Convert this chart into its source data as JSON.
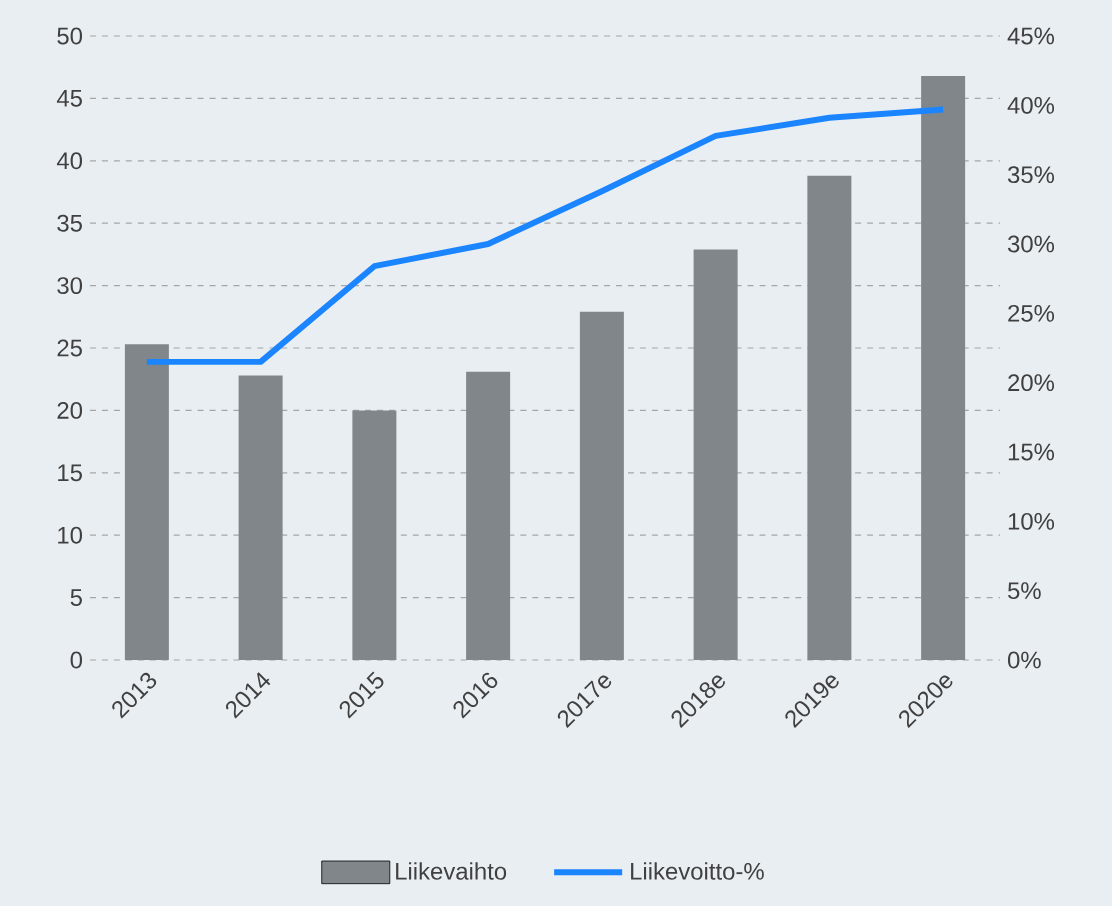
{
  "chart_data": {
    "type": "bar",
    "categories": [
      "2013",
      "2014",
      "2015",
      "2016",
      "2017e",
      "2018e",
      "2019e",
      "2020e"
    ],
    "series": [
      {
        "name": "Liikevaihto",
        "color": "#80868a",
        "values": [
          25.3,
          22.8,
          20.0,
          23.1,
          27.9,
          32.9,
          38.8,
          46.8
        ]
      },
      {
        "name": "Liikevoitto-%",
        "type": "line",
        "axis": "y2",
        "color": "#1a85ff",
        "values": [
          21.5,
          21.5,
          28.4,
          30.0,
          33.8,
          37.8,
          39.1,
          39.7
        ]
      }
    ],
    "ylim": [
      0,
      50
    ],
    "yticks": [
      0,
      5,
      10,
      15,
      20,
      25,
      30,
      35,
      40,
      45,
      50
    ],
    "y2lim": [
      0,
      45
    ],
    "y2ticks": [
      {
        "value": 0,
        "label": "0%"
      },
      {
        "value": 5,
        "label": "5%"
      },
      {
        "value": 10,
        "label": "10%"
      },
      {
        "value": 15,
        "label": "15%"
      },
      {
        "value": 20,
        "label": "20%"
      },
      {
        "value": 25,
        "label": "25%"
      },
      {
        "value": 30,
        "label": "30%"
      },
      {
        "value": 35,
        "label": "35%"
      },
      {
        "value": 40,
        "label": "40%"
      },
      {
        "value": 45,
        "label": "45%"
      }
    ],
    "grid": "y",
    "legend": "bottom"
  }
}
